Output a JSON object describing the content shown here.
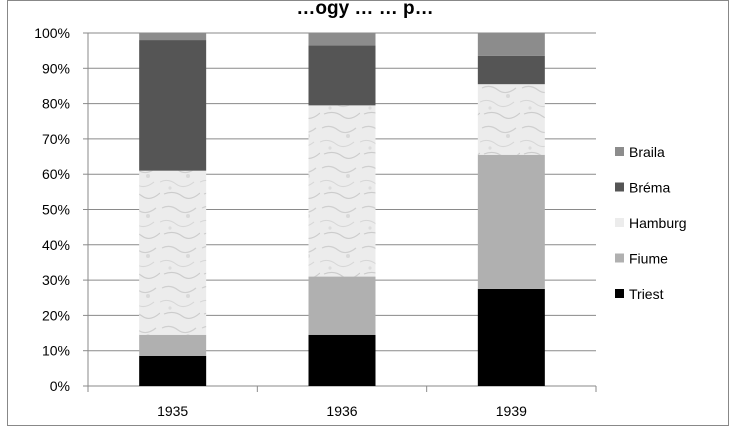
{
  "chart_data": {
    "type": "bar",
    "stacked": true,
    "percent_stacked": true,
    "title": "…ogy … … p…",
    "categories": [
      "1935",
      "1936",
      "1939"
    ],
    "ylim": [
      0,
      100
    ],
    "yticks": [
      "0%",
      "10%",
      "20%",
      "30%",
      "40%",
      "50%",
      "60%",
      "70%",
      "80%",
      "90%",
      "100%"
    ],
    "grid": true,
    "legend_position": "right",
    "series": [
      {
        "name": "Triest",
        "color": "#000000",
        "pattern": "solid",
        "values": [
          8.5,
          14.5,
          27.5
        ]
      },
      {
        "name": "Fiume",
        "color": "#b0b0b0",
        "pattern": "solid",
        "values": [
          6.0,
          16.5,
          38.0
        ]
      },
      {
        "name": "Hamburg",
        "color": "#ececec",
        "pattern": "marble",
        "values": [
          46.5,
          48.5,
          20.0
        ]
      },
      {
        "name": "Bréma",
        "color": "#555555",
        "pattern": "solid",
        "values": [
          37.0,
          17.0,
          8.0
        ]
      },
      {
        "name": "Braila",
        "color": "#8c8c8c",
        "pattern": "solid",
        "values": [
          2.0,
          3.5,
          6.5
        ]
      }
    ]
  }
}
